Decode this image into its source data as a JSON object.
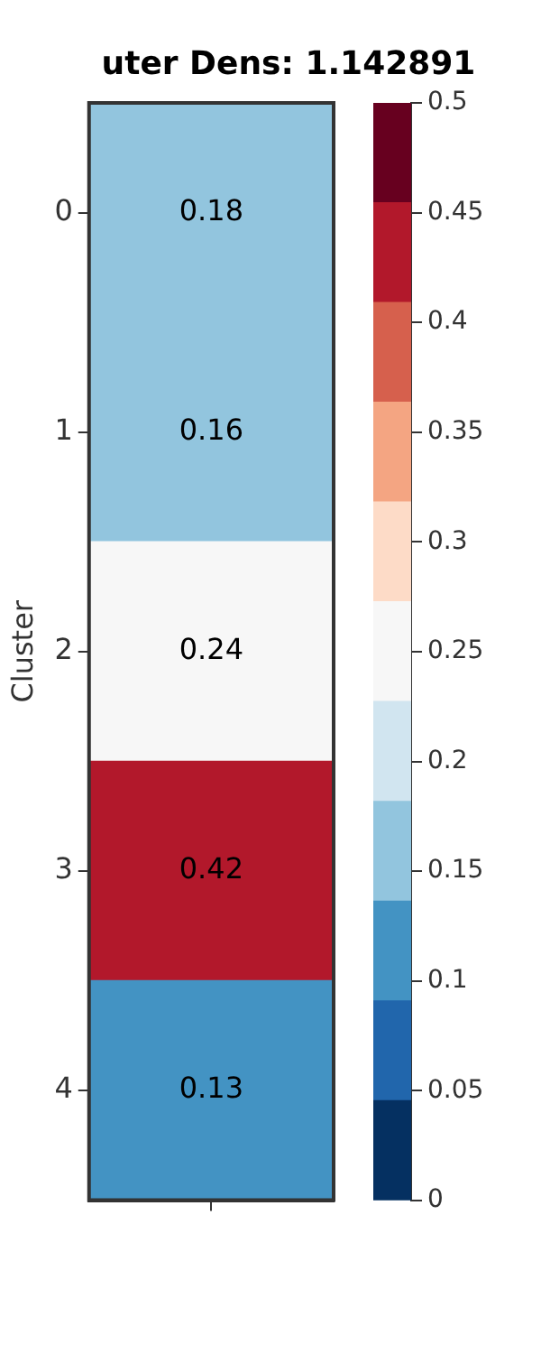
{
  "chart_data": {
    "type": "heatmap",
    "title": "uter Dens: 1.142891",
    "ylabel": "Cluster",
    "categories": [
      null
    ],
    "y_categories": [
      "0",
      "1",
      "2",
      "3",
      "4"
    ],
    "cells": [
      [
        0.18
      ],
      [
        0.16
      ],
      [
        0.24
      ],
      [
        0.42
      ],
      [
        0.13
      ]
    ],
    "data_labels": true,
    "clim": [
      0,
      0.5
    ],
    "cticks": [
      0,
      0.05,
      0.1,
      0.15,
      0.2,
      0.25,
      0.3,
      0.35,
      0.4,
      0.45,
      0.5
    ]
  }
}
